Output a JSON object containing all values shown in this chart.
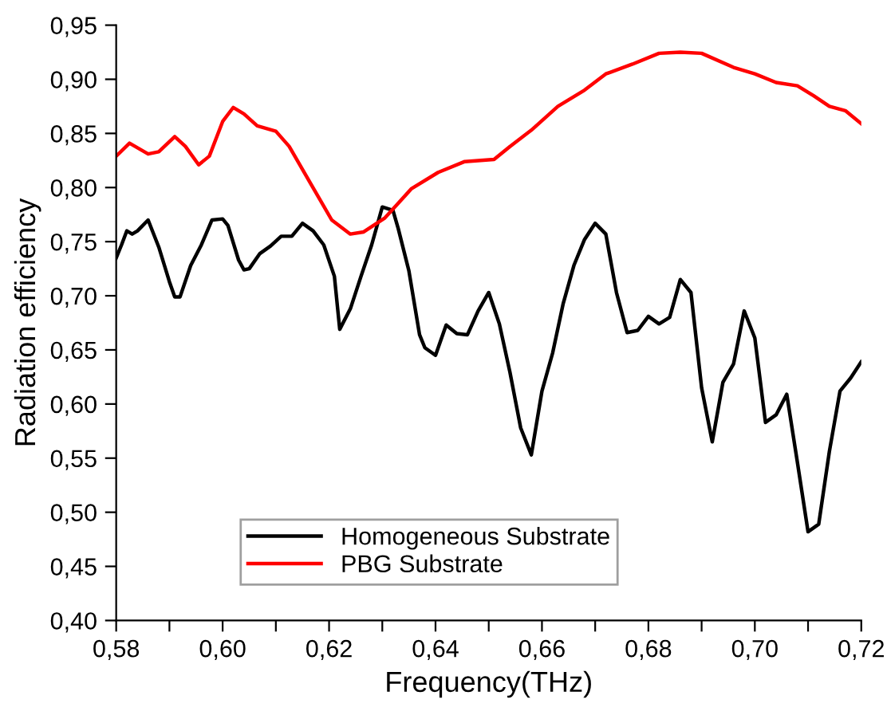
{
  "chart_data": {
    "type": "line",
    "xlabel": "Frequency(THz)",
    "ylabel": "Radiation efficiency",
    "xlim": [
      0.58,
      0.72
    ],
    "ylim": [
      0.4,
      0.95
    ],
    "xticks": [
      {
        "value": 0.58,
        "label": "0,58"
      },
      {
        "value": 0.59,
        "label": null
      },
      {
        "value": 0.6,
        "label": "0,60"
      },
      {
        "value": 0.61,
        "label": null
      },
      {
        "value": 0.62,
        "label": "0,62"
      },
      {
        "value": 0.63,
        "label": null
      },
      {
        "value": 0.64,
        "label": "0,64"
      },
      {
        "value": 0.65,
        "label": null
      },
      {
        "value": 0.66,
        "label": "0,66"
      },
      {
        "value": 0.67,
        "label": null
      },
      {
        "value": 0.68,
        "label": "0,68"
      },
      {
        "value": 0.69,
        "label": null
      },
      {
        "value": 0.7,
        "label": "0,70"
      },
      {
        "value": 0.71,
        "label": null
      },
      {
        "value": 0.72,
        "label": "0,72"
      }
    ],
    "yticks": [
      {
        "value": 0.4,
        "label": "0,40"
      },
      {
        "value": 0.45,
        "label": "0,45"
      },
      {
        "value": 0.5,
        "label": "0,50"
      },
      {
        "value": 0.55,
        "label": "0,55"
      },
      {
        "value": 0.6,
        "label": "0,60"
      },
      {
        "value": 0.65,
        "label": "0,65"
      },
      {
        "value": 0.7,
        "label": "0,70"
      },
      {
        "value": 0.75,
        "label": "0,75"
      },
      {
        "value": 0.8,
        "label": "0,80"
      },
      {
        "value": 0.85,
        "label": "0,85"
      },
      {
        "value": 0.9,
        "label": "0,90"
      },
      {
        "value": 0.95,
        "label": "0,95"
      }
    ],
    "grid": false,
    "legend": "bottom",
    "marker": "none",
    "line_style": "solid",
    "series": [
      {
        "name": "Homogeneous Substrate",
        "color": "#000000",
        "x": [
          0.58,
          0.581,
          0.582,
          0.583,
          0.584,
          0.586,
          0.588,
          0.59,
          0.591,
          0.592,
          0.594,
          0.596,
          0.598,
          0.6,
          0.601,
          0.603,
          0.604,
          0.605,
          0.607,
          0.609,
          0.611,
          0.613,
          0.615,
          0.617,
          0.619,
          0.621,
          0.622,
          0.624,
          0.626,
          0.628,
          0.63,
          0.632,
          0.633,
          0.635,
          0.637,
          0.638,
          0.64,
          0.642,
          0.644,
          0.646,
          0.648,
          0.65,
          0.652,
          0.654,
          0.656,
          0.658,
          0.66,
          0.662,
          0.664,
          0.666,
          0.668,
          0.67,
          0.672,
          0.674,
          0.676,
          0.678,
          0.68,
          0.682,
          0.684,
          0.686,
          0.688,
          0.69,
          0.692,
          0.694,
          0.696,
          0.698,
          0.7,
          0.702,
          0.704,
          0.706,
          0.708,
          0.71,
          0.712,
          0.714,
          0.716,
          0.718,
          0.72
        ],
        "values": [
          0.735,
          0.747,
          0.76,
          0.757,
          0.76,
          0.77,
          0.745,
          0.713,
          0.699,
          0.699,
          0.728,
          0.747,
          0.77,
          0.771,
          0.765,
          0.733,
          0.724,
          0.725,
          0.739,
          0.746,
          0.755,
          0.755,
          0.767,
          0.76,
          0.747,
          0.718,
          0.669,
          0.688,
          0.718,
          0.747,
          0.782,
          0.779,
          0.762,
          0.723,
          0.664,
          0.652,
          0.645,
          0.673,
          0.665,
          0.664,
          0.686,
          0.703,
          0.674,
          0.629,
          0.578,
          0.553,
          0.612,
          0.647,
          0.693,
          0.728,
          0.752,
          0.767,
          0.757,
          0.703,
          0.666,
          0.668,
          0.681,
          0.674,
          0.68,
          0.715,
          0.703,
          0.615,
          0.565,
          0.62,
          0.637,
          0.686,
          0.661,
          0.583,
          0.59,
          0.609,
          0.546,
          0.482,
          0.489,
          0.556,
          0.612,
          0.624,
          0.639
        ]
      },
      {
        "name": "PBG Substrate",
        "color": "#ff0000",
        "x": [
          0.58,
          0.5825,
          0.586,
          0.588,
          0.591,
          0.593,
          0.5955,
          0.5975,
          0.6,
          0.602,
          0.604,
          0.6065,
          0.61,
          0.6125,
          0.6165,
          0.6205,
          0.624,
          0.6265,
          0.6305,
          0.6355,
          0.6405,
          0.6455,
          0.651,
          0.654,
          0.658,
          0.663,
          0.668,
          0.672,
          0.677,
          0.682,
          0.686,
          0.69,
          0.696,
          0.7,
          0.704,
          0.708,
          0.711,
          0.714,
          0.717,
          0.72
        ],
        "values": [
          0.829,
          0.841,
          0.831,
          0.833,
          0.847,
          0.838,
          0.821,
          0.829,
          0.861,
          0.874,
          0.868,
          0.857,
          0.852,
          0.838,
          0.804,
          0.77,
          0.757,
          0.759,
          0.772,
          0.799,
          0.814,
          0.824,
          0.826,
          0.838,
          0.853,
          0.875,
          0.89,
          0.905,
          0.914,
          0.924,
          0.925,
          0.924,
          0.911,
          0.905,
          0.897,
          0.894,
          0.885,
          0.875,
          0.871,
          0.859
        ]
      }
    ]
  }
}
